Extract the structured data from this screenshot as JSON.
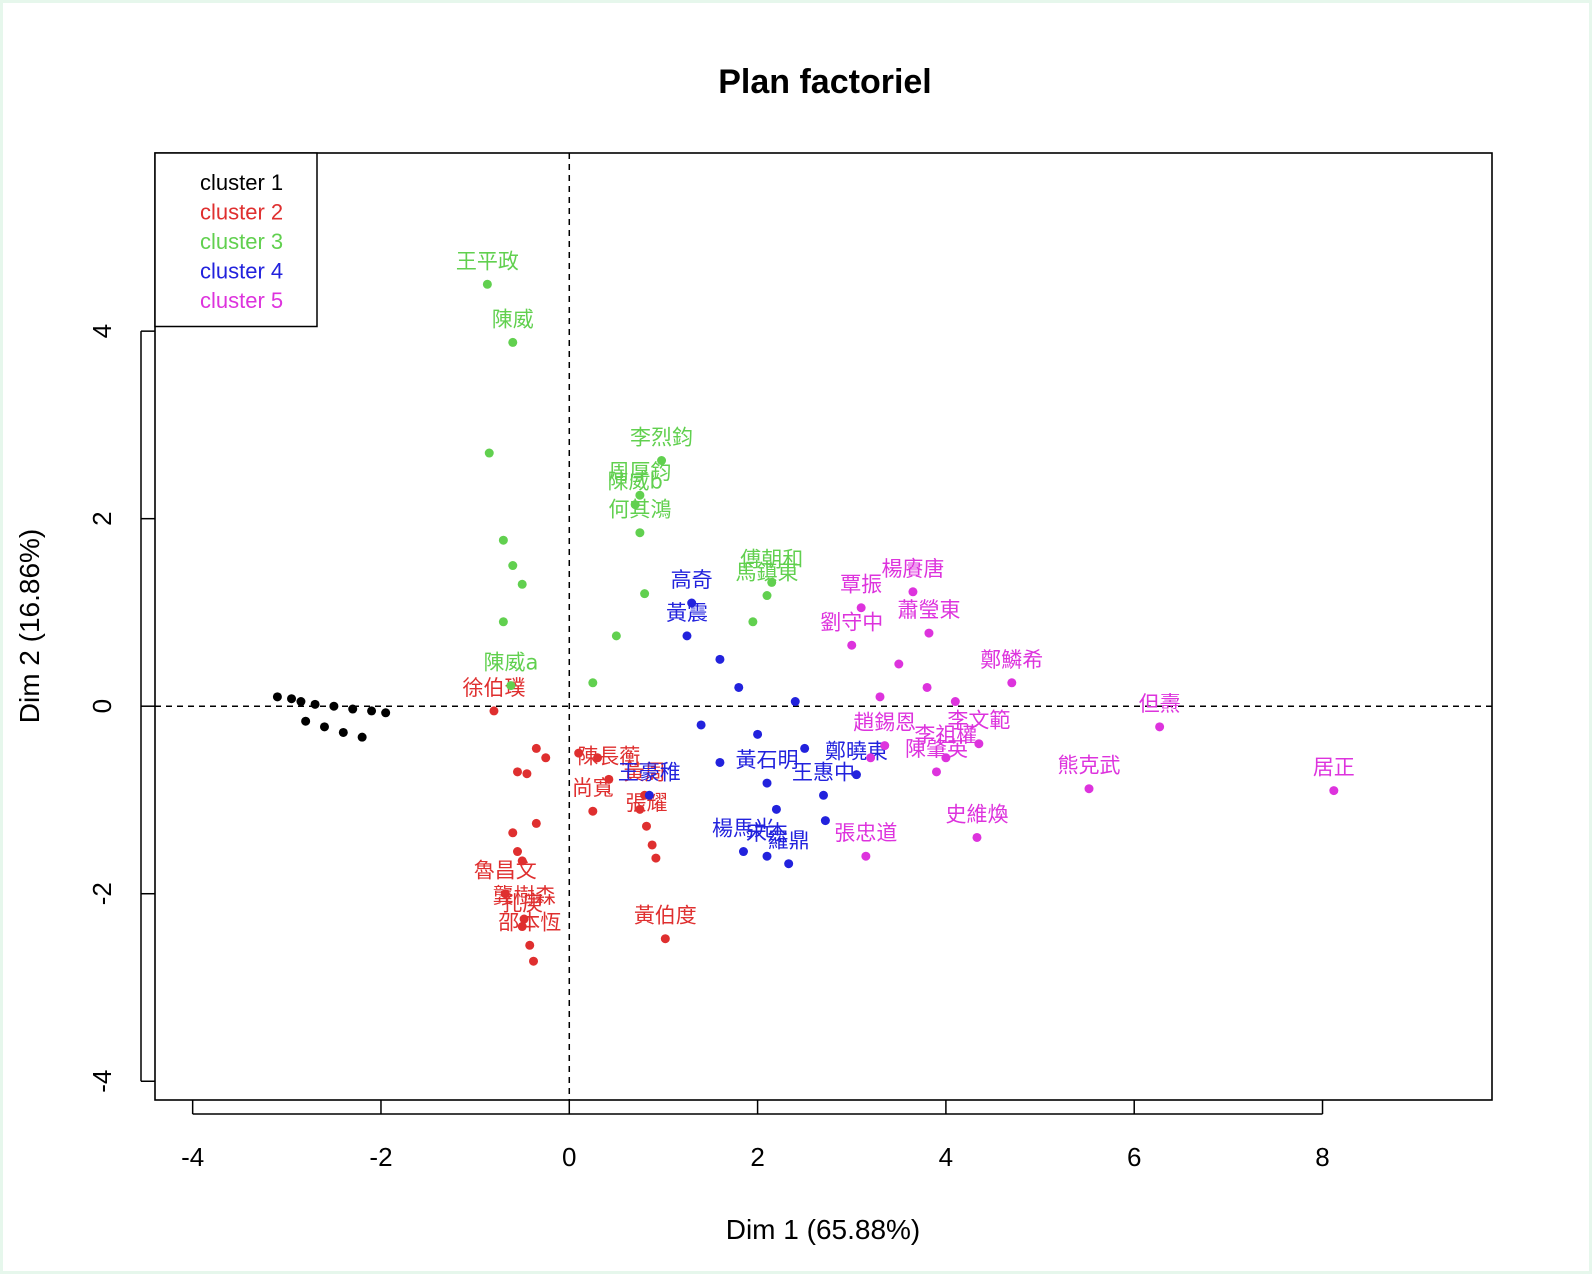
{
  "chart_data": {
    "type": "scatter",
    "title": "Plan factoriel",
    "xlabel": "Dim 1 (65.88%)",
    "ylabel": "Dim 2 (16.86%)",
    "xlim": [
      -4.4,
      9.8
    ],
    "ylim": [
      -4.2,
      5.9
    ],
    "xticks": [
      -4,
      -2,
      0,
      2,
      4,
      6,
      8
    ],
    "yticks": [
      -4,
      -2,
      0,
      2,
      4
    ],
    "reference_lines": {
      "x": 0,
      "y": 0,
      "style": "dashed"
    },
    "legend": {
      "position": "top-left",
      "items": [
        {
          "label": "cluster 1",
          "color": "#000000"
        },
        {
          "label": "cluster 2",
          "color": "#df2f2f"
        },
        {
          "label": "cluster 3",
          "color": "#61d04f"
        },
        {
          "label": "cluster 4",
          "color": "#2222dd"
        },
        {
          "label": "cluster 5",
          "color": "#dd33dd"
        }
      ]
    },
    "series": [
      {
        "name": "cluster 1",
        "color": "#000000",
        "points": [
          {
            "x": -2.8,
            "y": -0.16,
            "label": ""
          },
          {
            "x": -2.6,
            "y": -0.22,
            "label": ""
          },
          {
            "x": -2.4,
            "y": -0.28,
            "label": ""
          },
          {
            "x": -2.2,
            "y": -0.33,
            "label": ""
          },
          {
            "x": -3.1,
            "y": 0.1,
            "label": ""
          },
          {
            "x": -2.95,
            "y": 0.08,
            "label": ""
          },
          {
            "x": -2.85,
            "y": 0.05,
            "label": ""
          },
          {
            "x": -2.7,
            "y": 0.02,
            "label": ""
          },
          {
            "x": -2.5,
            "y": 0.0,
            "label": ""
          },
          {
            "x": -2.3,
            "y": -0.03,
            "label": ""
          },
          {
            "x": -2.1,
            "y": -0.05,
            "label": ""
          },
          {
            "x": -1.95,
            "y": -0.07,
            "label": ""
          }
        ]
      },
      {
        "name": "cluster 2",
        "color": "#df2f2f",
        "points": [
          {
            "x": -0.8,
            "y": -0.05,
            "label": "徐伯璞"
          },
          {
            "x": 1.02,
            "y": -2.48,
            "label": "黃伯度"
          },
          {
            "x": -0.48,
            "y": -2.27,
            "label": "龔樹森"
          },
          {
            "x": -0.68,
            "y": -2.0,
            "label": "魯昌文"
          },
          {
            "x": -0.5,
            "y": -2.35,
            "label": "孔庚"
          },
          {
            "x": -0.42,
            "y": -2.55,
            "label": "邵本恆"
          },
          {
            "x": -0.38,
            "y": -2.72,
            "label": ""
          },
          {
            "x": 0.25,
            "y": -1.12,
            "label": "尚寬"
          },
          {
            "x": 0.42,
            "y": -0.78,
            "label": "陳長蘅"
          },
          {
            "x": 0.8,
            "y": -0.95,
            "label": "黃周"
          },
          {
            "x": 0.82,
            "y": -1.28,
            "label": "張耀"
          },
          {
            "x": 0.75,
            "y": -1.1,
            "label": ""
          },
          {
            "x": 0.88,
            "y": -1.48,
            "label": ""
          },
          {
            "x": 0.92,
            "y": -1.62,
            "label": ""
          },
          {
            "x": -0.55,
            "y": -1.55,
            "label": ""
          },
          {
            "x": -0.5,
            "y": -1.65,
            "label": ""
          },
          {
            "x": -0.55,
            "y": -0.7,
            "label": ""
          },
          {
            "x": -0.45,
            "y": -0.72,
            "label": ""
          },
          {
            "x": -0.35,
            "y": -0.45,
            "label": ""
          },
          {
            "x": -0.25,
            "y": -0.55,
            "label": ""
          },
          {
            "x": 0.1,
            "y": -0.5,
            "label": ""
          },
          {
            "x": 0.3,
            "y": -0.55,
            "label": ""
          },
          {
            "x": -0.6,
            "y": -1.35,
            "label": ""
          },
          {
            "x": -0.35,
            "y": -1.25,
            "label": ""
          }
        ]
      },
      {
        "name": "cluster 3",
        "color": "#61d04f",
        "points": [
          {
            "x": -0.87,
            "y": 4.5,
            "label": "王平政"
          },
          {
            "x": -0.6,
            "y": 3.88,
            "label": "陳威"
          },
          {
            "x": -0.85,
            "y": 2.7,
            "label": ""
          },
          {
            "x": -0.7,
            "y": 1.77,
            "label": ""
          },
          {
            "x": -0.62,
            "y": 0.22,
            "label": "陳威a"
          },
          {
            "x": 0.98,
            "y": 2.62,
            "label": "李烈鈞"
          },
          {
            "x": 0.75,
            "y": 2.25,
            "label": "周厚鈞"
          },
          {
            "x": 0.7,
            "y": 2.15,
            "label": "陳威b"
          },
          {
            "x": 0.75,
            "y": 1.85,
            "label": "何其鴻"
          },
          {
            "x": 2.15,
            "y": 1.32,
            "label": "傅朝和"
          },
          {
            "x": 2.1,
            "y": 1.18,
            "label": "馬鎮東"
          },
          {
            "x": 1.95,
            "y": 0.9,
            "label": ""
          },
          {
            "x": 0.8,
            "y": 1.2,
            "label": ""
          },
          {
            "x": -0.6,
            "y": 1.5,
            "label": ""
          },
          {
            "x": -0.5,
            "y": 1.3,
            "label": ""
          },
          {
            "x": -0.7,
            "y": 0.9,
            "label": ""
          },
          {
            "x": 0.5,
            "y": 0.75,
            "label": ""
          },
          {
            "x": 0.25,
            "y": 0.25,
            "label": ""
          }
        ]
      },
      {
        "name": "cluster 4",
        "color": "#2222dd",
        "points": [
          {
            "x": 2.7,
            "y": -0.95,
            "label": "王惠中"
          },
          {
            "x": 2.72,
            "y": -1.22,
            "label": ""
          },
          {
            "x": 3.05,
            "y": -0.73,
            "label": "鄭曉東"
          },
          {
            "x": 1.85,
            "y": -1.55,
            "label": "楊馬光"
          },
          {
            "x": 2.1,
            "y": -1.6,
            "label": "宋杰"
          },
          {
            "x": 2.33,
            "y": -1.68,
            "label": "羅鼎"
          },
          {
            "x": 2.2,
            "y": -1.1,
            "label": ""
          },
          {
            "x": 2.1,
            "y": -0.82,
            "label": "黃石明"
          },
          {
            "x": 0.85,
            "y": -0.95,
            "label": "王豪稚"
          },
          {
            "x": 1.3,
            "y": 1.1,
            "label": "高奇"
          },
          {
            "x": 1.25,
            "y": 0.75,
            "label": "黃震"
          },
          {
            "x": 1.6,
            "y": 0.5,
            "label": ""
          },
          {
            "x": 1.8,
            "y": 0.2,
            "label": ""
          },
          {
            "x": 2.4,
            "y": 0.05,
            "label": ""
          },
          {
            "x": 2.0,
            "y": -0.3,
            "label": ""
          },
          {
            "x": 1.6,
            "y": -0.6,
            "label": ""
          },
          {
            "x": 2.5,
            "y": -0.45,
            "label": ""
          },
          {
            "x": 1.4,
            "y": -0.2,
            "label": ""
          }
        ]
      },
      {
        "name": "cluster 5",
        "color": "#dd33dd",
        "points": [
          {
            "x": 8.12,
            "y": -0.9,
            "label": "居正"
          },
          {
            "x": 6.27,
            "y": -0.22,
            "label": "但燾"
          },
          {
            "x": 5.52,
            "y": -0.88,
            "label": "熊克武"
          },
          {
            "x": 4.33,
            "y": -1.4,
            "label": "史維煥"
          },
          {
            "x": 3.15,
            "y": -1.6,
            "label": "張忠道"
          },
          {
            "x": 4.7,
            "y": 0.25,
            "label": "鄭鱗希"
          },
          {
            "x": 4.35,
            "y": -0.4,
            "label": "李文範"
          },
          {
            "x": 4.0,
            "y": -0.55,
            "label": "李祖權"
          },
          {
            "x": 3.9,
            "y": -0.7,
            "label": "陳肇英"
          },
          {
            "x": 3.35,
            "y": -0.42,
            "label": "趙錫恩"
          },
          {
            "x": 3.2,
            "y": -0.55,
            "label": ""
          },
          {
            "x": 3.65,
            "y": 1.22,
            "label": "楊賡唐"
          },
          {
            "x": 3.1,
            "y": 1.05,
            "label": "覃振"
          },
          {
            "x": 3.82,
            "y": 0.78,
            "label": "蕭瑩東"
          },
          {
            "x": 3.0,
            "y": 0.65,
            "label": "劉守中"
          },
          {
            "x": 3.5,
            "y": 0.45,
            "label": ""
          },
          {
            "x": 3.8,
            "y": 0.2,
            "label": ""
          },
          {
            "x": 4.1,
            "y": 0.05,
            "label": ""
          },
          {
            "x": 3.3,
            "y": 0.1,
            "label": ""
          }
        ]
      }
    ]
  }
}
